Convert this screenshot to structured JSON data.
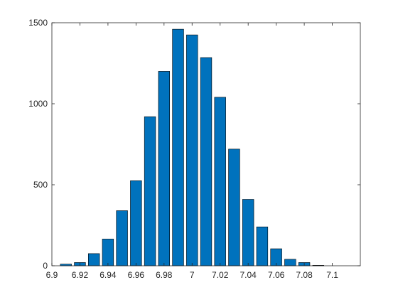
{
  "chart_data": {
    "type": "bar",
    "title": "",
    "xlabel": "",
    "ylabel": "",
    "bin_width": 0.01,
    "x": [
      6.91,
      6.92,
      6.93,
      6.94,
      6.95,
      6.96,
      6.97,
      6.98,
      6.99,
      7.0,
      7.01,
      7.02,
      7.03,
      7.04,
      7.05,
      7.06,
      7.07,
      7.08,
      7.09
    ],
    "values": [
      10,
      20,
      75,
      165,
      340,
      525,
      920,
      1200,
      1460,
      1425,
      1285,
      1040,
      720,
      410,
      240,
      105,
      40,
      20,
      3
    ],
    "xlim": [
      6.9,
      7.12
    ],
    "ylim": [
      0,
      1500
    ],
    "xticks": [
      6.9,
      6.92,
      6.94,
      6.96,
      6.98,
      7.0,
      7.02,
      7.04,
      7.06,
      7.08,
      7.1
    ],
    "xtick_labels": [
      "6.9",
      "6.92",
      "6.94",
      "6.96",
      "6.98",
      "7",
      "7.02",
      "7.04",
      "7.06",
      "7.08",
      "7.1"
    ],
    "yticks": [
      0,
      500,
      1000,
      1500
    ],
    "ytick_labels": [
      "0",
      "500",
      "1000",
      "1500"
    ],
    "grid": false,
    "legend": "none",
    "bar_color": "#0072BD",
    "edge_color": "#000000"
  }
}
